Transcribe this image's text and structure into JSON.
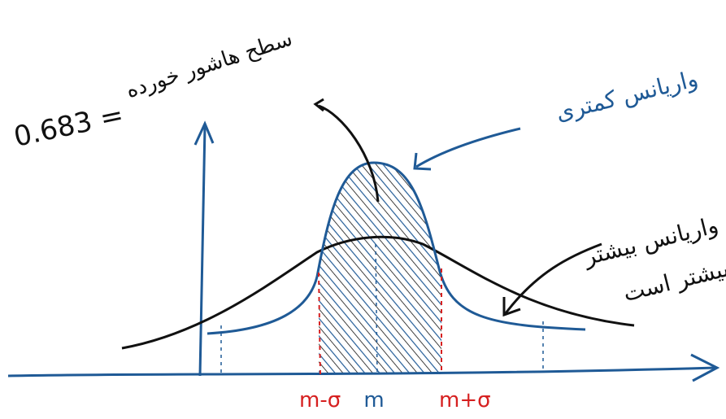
{
  "annotations": {
    "area_value": "0.683 =",
    "area_label": "سطح هاشور خورده",
    "low_variance": "واریانس کمتری",
    "high_variance_line1": "واریانس بیشتر",
    "high_variance_line2": "بیشتر است"
  },
  "labels": {
    "left": "m-σ",
    "center": "m",
    "right": "m+σ"
  }
}
